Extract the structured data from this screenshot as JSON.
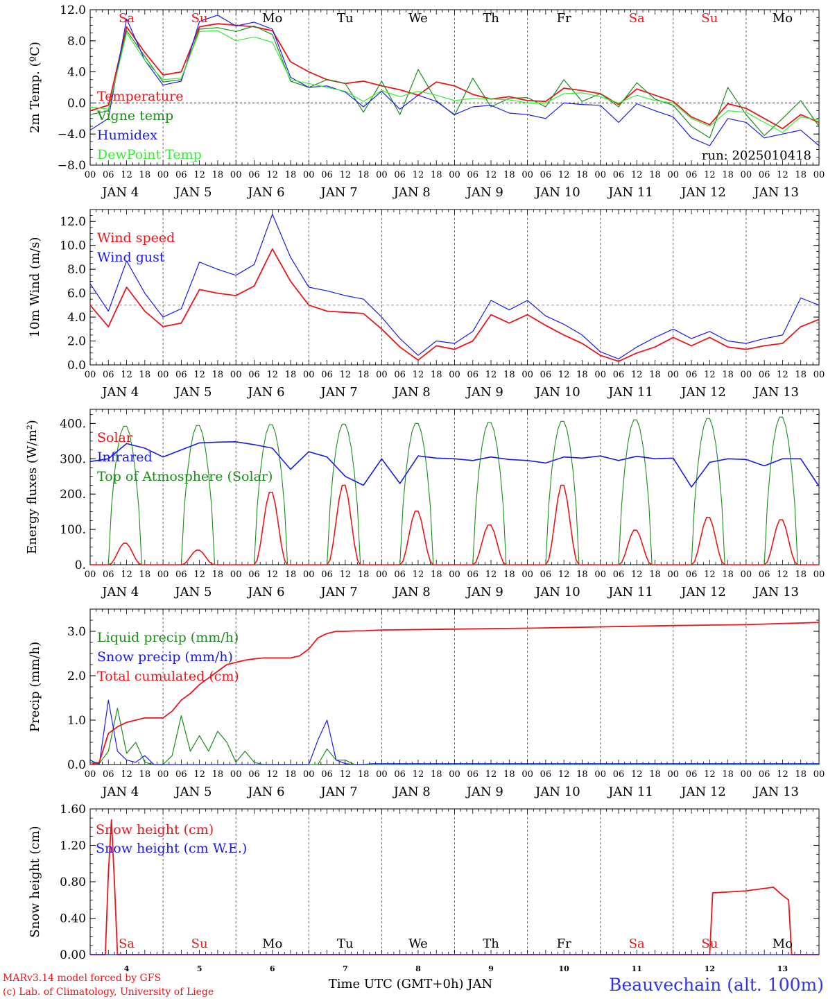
{
  "colors": {
    "red": "#e8161b",
    "green": "#1a8c1a",
    "blue": "#1a1ae6",
    "lightgreen": "#33ee33",
    "grid": "#888888",
    "footer_blue": "#3333ee"
  },
  "days": {
    "names": [
      "Sa",
      "Su",
      "Mo",
      "Tu",
      "We",
      "Th",
      "Fr",
      "Sa",
      "Su",
      "Mo"
    ],
    "weekend_flags": [
      true,
      true,
      false,
      false,
      false,
      false,
      false,
      true,
      true,
      false
    ],
    "date_labels": [
      "JAN  4",
      "JAN  5",
      "JAN  6",
      "JAN  7",
      "JAN  8",
      "JAN  9",
      "JAN 10",
      "JAN 11",
      "JAN 12",
      "JAN 13"
    ],
    "hour_labels": [
      "00",
      "06",
      "12",
      "18"
    ],
    "final_hour_label": "00",
    "bottom_numbers": [
      "4",
      "5",
      "6",
      "7",
      "8",
      "9",
      "10",
      "11",
      "12",
      "13"
    ]
  },
  "run_label": "run: 2025010418",
  "footer": {
    "line1": "MARv3.14 model forced by GFS",
    "line2": "(c) Lab. of Climatology, University of Liege",
    "xlabel": "Time UTC (GMT+0h) JAN",
    "station": "Beauvechain (alt. 100m)"
  },
  "chart_data": [
    {
      "id": "temperature",
      "type": "line",
      "ylabel": "2m Temp. (ºC)",
      "ylim": [
        -8,
        12
      ],
      "yticks": [
        "12.0",
        "8.0",
        "4.0",
        "0.0",
        "−4.0",
        "−8.0"
      ],
      "ytick_values": [
        12,
        8,
        4,
        0,
        -4,
        -8
      ],
      "reference_line": 0,
      "x_hours": [
        0,
        6,
        12,
        18,
        24,
        30,
        36,
        42,
        48,
        54,
        60,
        66,
        72,
        78,
        84,
        90,
        96,
        102,
        108,
        114,
        120,
        126,
        132,
        138,
        144,
        150,
        156,
        162,
        168,
        174,
        180,
        186,
        192,
        198,
        204,
        210,
        216,
        222,
        228,
        234,
        240
      ],
      "series": [
        {
          "name": "Temperature",
          "color": "red",
          "values": [
            -1.0,
            -0.3,
            9.8,
            6.5,
            3.6,
            4.0,
            9.8,
            10.2,
            10.0,
            9.8,
            9.3,
            5.3,
            4.0,
            3.0,
            2.5,
            2.8,
            2.2,
            1.7,
            1.0,
            2.7,
            2.2,
            1.1,
            0.5,
            0.8,
            0.3,
            0.2,
            1.9,
            1.6,
            1.2,
            -0.2,
            1.8,
            1.0,
            0.2,
            -1.8,
            -2.8,
            -0.1,
            -0.7,
            -2.0,
            -3.3,
            -1.5,
            -2.5
          ]
        },
        {
          "name": "Vigne temp",
          "color": "green",
          "values": [
            -1.5,
            -1.0,
            9.3,
            6.0,
            2.7,
            3.0,
            9.5,
            9.7,
            9.2,
            9.9,
            8.8,
            2.8,
            2.0,
            3.0,
            2.5,
            -1.2,
            2.8,
            -1.5,
            4.3,
            0.3,
            -1.6,
            3.2,
            -0.5,
            0.6,
            0.7,
            -0.5,
            3.0,
            0.2,
            1.2,
            -0.5,
            2.6,
            0.5,
            -0.3,
            -3.0,
            -4.5,
            2.0,
            -1.5,
            -4.2,
            -2.0,
            0.3,
            -3.0
          ]
        },
        {
          "name": "Humidex",
          "color": "blue",
          "values": [
            -3.5,
            -2.0,
            10.8,
            5.5,
            2.3,
            2.8,
            10.5,
            11.3,
            9.9,
            10.4,
            9.5,
            3.3,
            2.0,
            2.2,
            1.4,
            -0.5,
            1.5,
            -0.8,
            1.0,
            0.2,
            -1.5,
            -0.5,
            -0.3,
            -1.3,
            -1.5,
            -2.0,
            0.0,
            -0.2,
            -0.3,
            -2.5,
            -0.1,
            -1.0,
            -1.8,
            -4.5,
            -5.5,
            -2.0,
            -2.5,
            -4.5,
            -4.0,
            -3.5,
            -5.5
          ]
        },
        {
          "name": "DewPoint Temp",
          "color": "lightgreen",
          "values": [
            -0.5,
            -0.8,
            9.0,
            5.5,
            3.0,
            3.2,
            9.2,
            9.3,
            8.0,
            8.5,
            7.8,
            3.0,
            2.5,
            2.0,
            1.5,
            0.2,
            1.6,
            0.8,
            1.5,
            1.0,
            0.3,
            0.6,
            0.5,
            0.4,
            0.0,
            0.0,
            1.2,
            1.3,
            0.8,
            0.0,
            1.0,
            0.3,
            0.0,
            -2.0,
            -3.0,
            -1.0,
            -1.2,
            -2.5,
            -3.8,
            -1.8,
            -2.2
          ]
        }
      ]
    },
    {
      "id": "wind",
      "type": "line",
      "ylabel": "10m Wind (m/s)",
      "ylim": [
        0,
        13
      ],
      "yticks": [
        "12.0",
        "10.0",
        "8.0",
        "6.0",
        "4.0",
        "2.0",
        "0.0"
      ],
      "ytick_values": [
        12,
        10,
        8,
        6,
        4,
        2,
        0
      ],
      "reference_line": 5,
      "x_hours": [
        0,
        6,
        12,
        18,
        24,
        30,
        36,
        42,
        48,
        54,
        60,
        66,
        72,
        78,
        84,
        90,
        96,
        102,
        108,
        114,
        120,
        126,
        132,
        138,
        144,
        150,
        156,
        162,
        168,
        174,
        180,
        186,
        192,
        198,
        204,
        210,
        216,
        222,
        228,
        234,
        240
      ],
      "series": [
        {
          "name": "Wind speed",
          "color": "red",
          "values": [
            5.0,
            3.2,
            6.5,
            4.5,
            3.2,
            3.5,
            6.3,
            6.0,
            5.8,
            6.6,
            9.7,
            7.0,
            5.0,
            4.5,
            4.4,
            4.3,
            3.0,
            1.5,
            0.4,
            1.6,
            1.3,
            2.0,
            4.2,
            3.5,
            4.2,
            3.3,
            2.5,
            1.8,
            0.8,
            0.3,
            1.0,
            1.5,
            2.3,
            1.6,
            2.3,
            1.5,
            1.3,
            1.6,
            1.8,
            3.2,
            3.8
          ]
        },
        {
          "name": "Wind gust",
          "color": "blue",
          "values": [
            6.8,
            4.5,
            8.7,
            6.0,
            4.0,
            4.7,
            8.6,
            8.0,
            7.5,
            8.4,
            12.6,
            9.0,
            6.5,
            6.2,
            5.8,
            5.5,
            4.0,
            2.2,
            0.8,
            2.0,
            1.8,
            2.8,
            5.4,
            4.6,
            5.4,
            4.1,
            3.4,
            2.5,
            1.1,
            0.5,
            1.5,
            2.3,
            3.0,
            2.2,
            2.8,
            2.0,
            1.8,
            2.2,
            2.5,
            5.6,
            5.0
          ]
        }
      ]
    },
    {
      "id": "energy",
      "type": "line",
      "ylabel": "Energy fluxes (W/m²)",
      "ylim": [
        0,
        440
      ],
      "yticks": [
        "400.",
        "300.",
        "200.",
        "100.",
        "0."
      ],
      "ytick_values": [
        400,
        300,
        200,
        100,
        0
      ],
      "daytime_hours": [
        7,
        8,
        9,
        10,
        11,
        12,
        13,
        14,
        15,
        16
      ],
      "toa_peaks": [
        395,
        397,
        399,
        401,
        403,
        406,
        409,
        413,
        417,
        421
      ],
      "solar_peaks": [
        62,
        42,
        210,
        230,
        155,
        115,
        230,
        100,
        137,
        130
      ],
      "x_hours": [
        0,
        6,
        12,
        18,
        24,
        30,
        36,
        42,
        48,
        54,
        60,
        66,
        72,
        78,
        84,
        90,
        96,
        102,
        108,
        114,
        120,
        126,
        132,
        138,
        144,
        150,
        156,
        162,
        168,
        174,
        180,
        186,
        192,
        198,
        204,
        210,
        216,
        222,
        228,
        234,
        240
      ],
      "series": [
        {
          "name": "Solar",
          "color": "red"
        },
        {
          "name": "Infrared",
          "color": "blue",
          "values": [
            292,
            300,
            343,
            330,
            305,
            325,
            345,
            347,
            348,
            340,
            330,
            270,
            320,
            305,
            250,
            225,
            300,
            230,
            308,
            302,
            300,
            295,
            305,
            298,
            295,
            288,
            305,
            302,
            308,
            295,
            307,
            300,
            302,
            220,
            290,
            300,
            298,
            280,
            300,
            300,
            222
          ]
        },
        {
          "name": "Top of Atmosphere (Solar)",
          "color": "green"
        }
      ]
    },
    {
      "id": "precip",
      "type": "line",
      "ylabel": "Precip (mm/h)",
      "ylim": [
        0,
        3.5
      ],
      "yticks": [
        "3.0",
        "2.0",
        "1.0",
        "0.0"
      ],
      "ytick_values": [
        3,
        2,
        1,
        0
      ],
      "x_hours": [
        0,
        3,
        6,
        9,
        12,
        15,
        18,
        21,
        24,
        27,
        30,
        33,
        36,
        39,
        42,
        45,
        48,
        51,
        54,
        57,
        60,
        63,
        66,
        69,
        72,
        75,
        78,
        81,
        84,
        87,
        90,
        93,
        96,
        120,
        144,
        168,
        192,
        216,
        240
      ],
      "series": [
        {
          "name": "Liquid precip (mm/h)",
          "color": "green",
          "values": [
            0.05,
            0.02,
            0.3,
            1.27,
            0.25,
            0.5,
            0.05,
            0.0,
            0.0,
            0.2,
            1.1,
            0.3,
            0.65,
            0.3,
            0.75,
            0.5,
            0.05,
            0.3,
            0.05,
            0.0,
            0.0,
            0.0,
            0.0,
            0.0,
            0.0,
            0.0,
            0.35,
            0.1,
            0.1,
            0.0,
            0.0,
            0.0,
            0.0,
            0.0,
            0.0,
            0.0,
            0.0,
            0.0,
            0.0
          ]
        },
        {
          "name": "Snow precip (mm/h)",
          "color": "blue",
          "values": [
            0.1,
            0.0,
            1.45,
            0.3,
            0.1,
            0.05,
            0.2,
            0.0,
            0.0,
            0.0,
            0.0,
            0.0,
            0.0,
            0.0,
            0.0,
            0.0,
            0.0,
            0.0,
            0.0,
            0.0,
            0.0,
            0.0,
            0.0,
            0.0,
            0.0,
            0.55,
            1.0,
            0.1,
            0.02,
            0.0,
            0.0,
            0.02,
            0.02,
            0.02,
            0.02,
            0.02,
            0.02,
            0.02,
            0.02
          ]
        },
        {
          "name": "Total cumulated (cm)",
          "color": "red",
          "values": [
            0.0,
            0.05,
            0.7,
            0.85,
            0.95,
            1.0,
            1.05,
            1.05,
            1.05,
            1.2,
            1.45,
            1.6,
            1.8,
            1.95,
            2.1,
            2.25,
            2.3,
            2.35,
            2.38,
            2.4,
            2.4,
            2.4,
            2.4,
            2.45,
            2.6,
            2.85,
            2.95,
            3.0,
            3.0,
            3.01,
            3.01,
            3.02,
            3.03,
            3.05,
            3.07,
            3.1,
            3.13,
            3.15,
            3.2
          ]
        }
      ]
    },
    {
      "id": "snow",
      "type": "line",
      "ylabel": "Snow height (cm)",
      "ylim": [
        0,
        1.6
      ],
      "yticks": [
        "1.60",
        "1.20",
        "0.80",
        "0.40",
        "0.00"
      ],
      "ytick_values": [
        1.6,
        1.2,
        0.8,
        0.4,
        0
      ],
      "x_hours": [
        0,
        3,
        5,
        6,
        7,
        8,
        9,
        10,
        12,
        24,
        48,
        96,
        144,
        192,
        204,
        205,
        206,
        216,
        225,
        228,
        230,
        231,
        240
      ],
      "series": [
        {
          "name": "Snow height (cm)",
          "color": "red",
          "values": [
            0,
            0,
            0,
            0.9,
            1.48,
            0.8,
            0,
            0,
            0,
            0,
            0,
            0,
            0,
            0,
            0,
            0.68,
            0.68,
            0.7,
            0.74,
            0.65,
            0.6,
            0,
            0
          ]
        },
        {
          "name": "Snow height (cm W.E.)",
          "color": "blue",
          "values": [
            0,
            0,
            0,
            0,
            0,
            0,
            0,
            0,
            0,
            0,
            0,
            0,
            0,
            0,
            0,
            0,
            0,
            0,
            0,
            0,
            0,
            0,
            0
          ]
        }
      ]
    }
  ]
}
